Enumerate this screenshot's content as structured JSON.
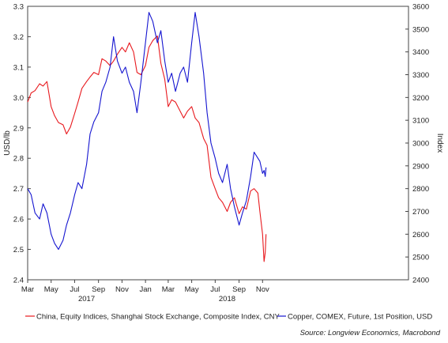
{
  "chart_data": {
    "type": "line",
    "left_axis": {
      "label": "USD/lb",
      "range": [
        2.4,
        3.3
      ],
      "ticks": [
        "2.4",
        "2.5",
        "2.6",
        "2.7",
        "2.8",
        "2.9",
        "3.0",
        "3.1",
        "3.2",
        "3.3"
      ]
    },
    "right_axis": {
      "label": "Index",
      "range": [
        2400,
        3600
      ],
      "ticks": [
        "2400",
        "2500",
        "2600",
        "2700",
        "2800",
        "2900",
        "3000",
        "3100",
        "3200",
        "3300",
        "3400",
        "3500",
        "3600"
      ]
    },
    "x_axis": {
      "range": [
        "2016-03-01",
        "2018-11-15"
      ],
      "month_ticks": [
        {
          "label": "Mar",
          "date": "2016-03-01"
        },
        {
          "label": "May",
          "date": "2016-05-01"
        },
        {
          "label": "Jul",
          "date": "2016-07-01"
        },
        {
          "label": "Sep",
          "date": "2016-09-01"
        },
        {
          "label": "Nov",
          "date": "2016-11-01"
        },
        {
          "label": "Jan",
          "date": "2017-01-01"
        },
        {
          "label": "Mar",
          "date": "2017-03-01"
        },
        {
          "label": "May",
          "date": "2017-05-01"
        },
        {
          "label": "Jul",
          "date": "2017-07-01"
        },
        {
          "label": "Sep",
          "date": "2017-09-01"
        },
        {
          "label": "Nov",
          "date": "2017-11-01"
        }
      ],
      "year_labels": [
        {
          "label": "2017",
          "date": "2016-08-01"
        },
        {
          "label": "2018",
          "date": "2017-08-01"
        }
      ]
    },
    "series": [
      {
        "name": "China, Equity Indices, Shanghai Stock Exchange, Composite Index, CNY",
        "color": "#e8191e",
        "axis": "right",
        "points": [
          [
            "2016-03-01",
            3180
          ],
          [
            "2016-03-10",
            3220
          ],
          [
            "2016-03-20",
            3230
          ],
          [
            "2016-04-01",
            3260
          ],
          [
            "2016-04-10",
            3250
          ],
          [
            "2016-04-20",
            3270
          ],
          [
            "2016-05-01",
            3160
          ],
          [
            "2016-05-10",
            3120
          ],
          [
            "2016-05-20",
            3090
          ],
          [
            "2016-06-01",
            3080
          ],
          [
            "2016-06-10",
            3040
          ],
          [
            "2016-06-20",
            3070
          ],
          [
            "2016-07-01",
            3130
          ],
          [
            "2016-07-10",
            3180
          ],
          [
            "2016-07-20",
            3240
          ],
          [
            "2016-08-01",
            3270
          ],
          [
            "2016-08-10",
            3290
          ],
          [
            "2016-08-20",
            3310
          ],
          [
            "2016-09-01",
            3300
          ],
          [
            "2016-09-10",
            3370
          ],
          [
            "2016-09-20",
            3360
          ],
          [
            "2016-10-01",
            3340
          ],
          [
            "2016-10-10",
            3360
          ],
          [
            "2016-10-20",
            3390
          ],
          [
            "2016-11-01",
            3420
          ],
          [
            "2016-11-10",
            3400
          ],
          [
            "2016-11-20",
            3440
          ],
          [
            "2016-12-01",
            3400
          ],
          [
            "2016-12-10",
            3310
          ],
          [
            "2016-12-20",
            3300
          ],
          [
            "2017-01-01",
            3340
          ],
          [
            "2017-01-10",
            3420
          ],
          [
            "2017-01-20",
            3450
          ],
          [
            "2017-02-01",
            3470
          ],
          [
            "2017-02-10",
            3350
          ],
          [
            "2017-02-20",
            3280
          ],
          [
            "2017-03-01",
            3160
          ],
          [
            "2017-03-10",
            3190
          ],
          [
            "2017-03-20",
            3180
          ],
          [
            "2017-04-01",
            3140
          ],
          [
            "2017-04-10",
            3110
          ],
          [
            "2017-04-20",
            3140
          ],
          [
            "2017-05-01",
            3160
          ],
          [
            "2017-05-10",
            3110
          ],
          [
            "2017-05-20",
            3090
          ],
          [
            "2017-06-01",
            3020
          ],
          [
            "2017-06-10",
            2990
          ],
          [
            "2017-06-20",
            2850
          ],
          [
            "2017-07-01",
            2800
          ],
          [
            "2017-07-10",
            2760
          ],
          [
            "2017-07-20",
            2740
          ],
          [
            "2017-08-01",
            2700
          ],
          [
            "2017-08-10",
            2740
          ],
          [
            "2017-08-20",
            2760
          ],
          [
            "2017-09-01",
            2690
          ],
          [
            "2017-09-10",
            2720
          ],
          [
            "2017-09-20",
            2710
          ],
          [
            "2017-10-01",
            2790
          ],
          [
            "2017-10-10",
            2800
          ],
          [
            "2017-10-20",
            2780
          ],
          [
            "2017-10-25",
            2700
          ],
          [
            "2017-11-01",
            2600
          ],
          [
            "2017-11-05",
            2480
          ],
          [
            "2017-11-08",
            2520
          ],
          [
            "2017-11-10",
            2600
          ]
        ]
      },
      {
        "name": "Copper, COMEX, Future, 1st Position, USD",
        "color": "#1515d0",
        "axis": "left",
        "points": [
          [
            "2016-03-01",
            2.7
          ],
          [
            "2016-03-10",
            2.68
          ],
          [
            "2016-03-20",
            2.62
          ],
          [
            "2016-04-01",
            2.6
          ],
          [
            "2016-04-10",
            2.65
          ],
          [
            "2016-04-20",
            2.62
          ],
          [
            "2016-05-01",
            2.55
          ],
          [
            "2016-05-10",
            2.52
          ],
          [
            "2016-05-20",
            2.5
          ],
          [
            "2016-06-01",
            2.53
          ],
          [
            "2016-06-10",
            2.58
          ],
          [
            "2016-06-20",
            2.62
          ],
          [
            "2016-07-01",
            2.68
          ],
          [
            "2016-07-10",
            2.72
          ],
          [
            "2016-07-20",
            2.7
          ],
          [
            "2016-08-01",
            2.78
          ],
          [
            "2016-08-10",
            2.88
          ],
          [
            "2016-08-20",
            2.92
          ],
          [
            "2016-09-01",
            2.95
          ],
          [
            "2016-09-10",
            3.02
          ],
          [
            "2016-09-20",
            3.05
          ],
          [
            "2016-10-01",
            3.1
          ],
          [
            "2016-10-10",
            3.2
          ],
          [
            "2016-10-20",
            3.12
          ],
          [
            "2016-11-01",
            3.08
          ],
          [
            "2016-11-10",
            3.1
          ],
          [
            "2016-11-20",
            3.05
          ],
          [
            "2016-12-01",
            3.02
          ],
          [
            "2016-12-10",
            2.95
          ],
          [
            "2016-12-20",
            3.05
          ],
          [
            "2017-01-01",
            3.18
          ],
          [
            "2017-01-10",
            3.28
          ],
          [
            "2017-01-20",
            3.25
          ],
          [
            "2017-02-01",
            3.18
          ],
          [
            "2017-02-10",
            3.22
          ],
          [
            "2017-02-20",
            3.12
          ],
          [
            "2017-03-01",
            3.05
          ],
          [
            "2017-03-10",
            3.08
          ],
          [
            "2017-03-20",
            3.02
          ],
          [
            "2017-04-01",
            3.08
          ],
          [
            "2017-04-10",
            3.1
          ],
          [
            "2017-04-20",
            3.05
          ],
          [
            "2017-05-01",
            3.18
          ],
          [
            "2017-05-10",
            3.28
          ],
          [
            "2017-05-20",
            3.2
          ],
          [
            "2017-06-01",
            3.08
          ],
          [
            "2017-06-10",
            2.95
          ],
          [
            "2017-06-20",
            2.85
          ],
          [
            "2017-07-01",
            2.8
          ],
          [
            "2017-07-10",
            2.75
          ],
          [
            "2017-07-20",
            2.72
          ],
          [
            "2017-08-01",
            2.78
          ],
          [
            "2017-08-10",
            2.7
          ],
          [
            "2017-08-20",
            2.64
          ],
          [
            "2017-09-01",
            2.58
          ],
          [
            "2017-09-10",
            2.62
          ],
          [
            "2017-09-20",
            2.66
          ],
          [
            "2017-10-01",
            2.74
          ],
          [
            "2017-10-10",
            2.82
          ],
          [
            "2017-10-20",
            2.8
          ],
          [
            "2017-10-25",
            2.79
          ],
          [
            "2017-11-01",
            2.75
          ],
          [
            "2017-11-05",
            2.76
          ],
          [
            "2017-11-08",
            2.74
          ],
          [
            "2017-11-10",
            2.77
          ]
        ]
      }
    ],
    "source": "Source: Longview Economics, Macrobond"
  }
}
